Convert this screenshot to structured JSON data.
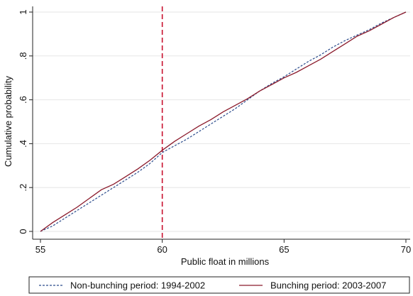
{
  "chart_data": {
    "type": "line",
    "xlabel": "Public float in millions",
    "ylabel": "Cumulative probability",
    "xlim": [
      55,
      70
    ],
    "ylim": [
      0,
      1
    ],
    "x_ticks": [
      55,
      60,
      65,
      70
    ],
    "x_tick_labels": [
      "55",
      "60",
      "65",
      "70"
    ],
    "y_ticks": [
      0,
      0.2,
      0.4,
      0.6,
      0.8,
      1
    ],
    "y_tick_labels": [
      "0",
      ".2",
      ".4",
      ".6",
      ".8",
      "1"
    ],
    "grid": "horizontal",
    "legend_position": "bottom",
    "reference_line": {
      "x": 60,
      "color": "#c8102e",
      "style": "dashed"
    },
    "series": [
      {
        "name": "Non-bunching period: 1994-2002",
        "color": "#2b4c8c",
        "style": "dashed",
        "x": [
          55,
          55.5,
          56,
          56.5,
          57,
          57.5,
          58,
          58.5,
          59,
          59.5,
          60,
          60.5,
          61,
          61.5,
          62,
          62.5,
          63,
          63.5,
          64,
          64.5,
          65,
          65.5,
          66,
          66.5,
          67,
          67.5,
          68,
          68.5,
          69,
          69.5,
          70
        ],
        "y": [
          0,
          0.025,
          0.06,
          0.095,
          0.13,
          0.165,
          0.2,
          0.235,
          0.27,
          0.31,
          0.36,
          0.39,
          0.42,
          0.455,
          0.49,
          0.525,
          0.56,
          0.6,
          0.64,
          0.675,
          0.705,
          0.74,
          0.775,
          0.805,
          0.84,
          0.87,
          0.895,
          0.92,
          0.95,
          0.975,
          1
        ]
      },
      {
        "name": "Bunching period: 2003-2007",
        "color": "#8b1a2b",
        "style": "solid",
        "x": [
          55,
          55.5,
          56,
          56.5,
          57,
          57.5,
          58,
          58.5,
          59,
          59.5,
          60,
          60.5,
          61,
          61.5,
          62,
          62.5,
          63,
          63.5,
          64,
          64.5,
          65,
          65.5,
          66,
          66.5,
          67,
          67.5,
          68,
          68.5,
          69,
          69.5,
          70
        ],
        "y": [
          0,
          0.04,
          0.075,
          0.11,
          0.15,
          0.19,
          0.215,
          0.25,
          0.285,
          0.325,
          0.37,
          0.41,
          0.445,
          0.48,
          0.51,
          0.545,
          0.575,
          0.605,
          0.64,
          0.67,
          0.7,
          0.725,
          0.755,
          0.785,
          0.82,
          0.855,
          0.89,
          0.915,
          0.945,
          0.975,
          1
        ]
      }
    ]
  }
}
